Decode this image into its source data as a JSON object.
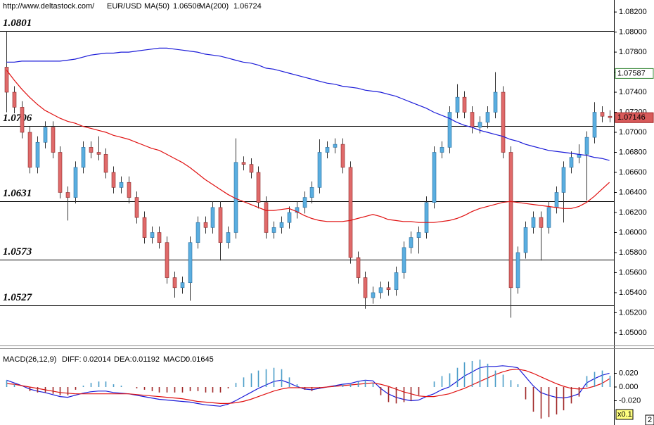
{
  "chart_data": [
    {
      "type": "candlestick",
      "source": "http://www.deltastock.com/",
      "symbol": "EUR/USD",
      "categories": [
        null,
        null,
        null,
        null,
        null,
        null,
        null,
        null,
        null,
        null,
        null,
        null,
        null,
        null,
        null,
        null,
        null,
        null,
        null,
        null,
        null,
        null,
        null,
        null,
        null,
        null,
        null,
        null,
        null,
        null,
        null,
        null,
        null,
        null,
        null,
        null,
        null,
        null,
        null,
        null,
        null,
        null,
        null,
        null,
        null,
        null,
        null,
        null,
        null,
        null,
        null,
        null,
        null,
        null,
        null,
        null,
        null,
        null,
        null,
        null,
        null,
        null,
        null,
        null,
        null,
        null,
        null,
        null,
        null,
        null,
        null,
        null,
        null,
        null,
        null,
        null,
        null,
        null,
        null,
        null
      ],
      "open": [
        1.0765,
        1.074,
        1.0725,
        1.07,
        1.0665,
        1.069,
        1.0705,
        1.068,
        1.064,
        1.0635,
        1.0665,
        1.0685,
        1.068,
        1.0678,
        1.066,
        1.0645,
        1.065,
        1.0635,
        1.0615,
        1.0595,
        1.06,
        1.059,
        1.0555,
        1.0545,
        1.055,
        1.059,
        1.061,
        1.0605,
        1.0625,
        1.059,
        1.06,
        1.067,
        1.0668,
        1.066,
        1.063,
        1.06,
        1.0605,
        1.061,
        1.062,
        1.0625,
        1.0635,
        1.0645,
        1.068,
        1.0685,
        1.0688,
        1.0665,
        1.0575,
        1.0555,
        1.0535,
        1.054,
        1.0545,
        1.0543,
        1.056,
        1.0585,
        1.0595,
        1.06,
        1.063,
        1.068,
        1.0685,
        1.072,
        1.0735,
        1.072,
        1.0705,
        1.071,
        1.072,
        1.074,
        1.068,
        1.0545,
        1.058,
        1.0605,
        1.0615,
        1.0605,
        1.0625,
        1.064,
        1.0665,
        1.0675,
        1.0678,
        1.0695,
        1.072,
        1.0716
      ],
      "high": [
        1.0801,
        1.0746,
        1.0731,
        1.0706,
        1.0696,
        1.0711,
        1.0711,
        1.0686,
        1.0646,
        1.0671,
        1.0691,
        1.0691,
        1.0696,
        1.0684,
        1.0666,
        1.0656,
        1.0656,
        1.0641,
        1.0621,
        1.0606,
        1.0606,
        1.0596,
        1.0561,
        1.0556,
        1.0596,
        1.0616,
        1.0616,
        1.0631,
        1.0631,
        1.0606,
        1.0694,
        1.0676,
        1.0674,
        1.0666,
        1.0636,
        1.0611,
        1.0616,
        1.0626,
        1.0631,
        1.0641,
        1.0651,
        1.0693,
        1.0691,
        1.0694,
        1.0694,
        1.0671,
        1.0581,
        1.0561,
        1.0546,
        1.0551,
        1.0551,
        1.0566,
        1.0591,
        1.0601,
        1.0606,
        1.0636,
        1.0686,
        1.0691,
        1.0726,
        1.0748,
        1.0741,
        1.0726,
        1.0716,
        1.0726,
        1.076,
        1.0746,
        1.0686,
        1.0586,
        1.0611,
        1.0621,
        1.0621,
        1.0631,
        1.0646,
        1.0671,
        1.0681,
        1.0688,
        1.0701,
        1.073,
        1.0726,
        1.0722
      ],
      "low": [
        1.072,
        1.0719,
        1.0694,
        1.0659,
        1.0659,
        1.0684,
        1.0674,
        1.0634,
        1.0612,
        1.0629,
        1.0659,
        1.0674,
        1.0672,
        1.0654,
        1.0639,
        1.0639,
        1.0629,
        1.0609,
        1.0589,
        1.0589,
        1.0584,
        1.0549,
        1.0535,
        1.0539,
        1.0532,
        1.0584,
        1.0599,
        1.0599,
        1.0572,
        1.0584,
        1.0594,
        1.0662,
        1.0654,
        1.0624,
        1.0594,
        1.0594,
        1.0599,
        1.0604,
        1.0614,
        1.0619,
        1.0629,
        1.0639,
        1.0674,
        1.0679,
        1.0659,
        1.0569,
        1.0549,
        1.0524,
        1.0529,
        1.0534,
        1.0537,
        1.0537,
        1.0554,
        1.0579,
        1.0579,
        1.0594,
        1.0624,
        1.0674,
        1.0679,
        1.0714,
        1.0714,
        1.0699,
        1.0699,
        1.0704,
        1.0714,
        1.0674,
        1.0515,
        1.0539,
        1.0574,
        1.0599,
        1.0572,
        1.0599,
        1.0619,
        1.061,
        1.0659,
        1.0669,
        1.0632,
        1.0689,
        1.071,
        1.071
      ],
      "close": [
        1.074,
        1.0725,
        1.07,
        1.0665,
        1.069,
        1.0705,
        1.068,
        1.064,
        1.0635,
        1.0665,
        1.0685,
        1.068,
        1.0678,
        1.066,
        1.0645,
        1.065,
        1.0635,
        1.0615,
        1.0595,
        1.06,
        1.059,
        1.0555,
        1.0545,
        1.055,
        1.059,
        1.061,
        1.0605,
        1.0625,
        1.059,
        1.06,
        1.067,
        1.0668,
        1.066,
        1.063,
        1.06,
        1.0605,
        1.061,
        1.062,
        1.0625,
        1.0635,
        1.0645,
        1.068,
        1.0685,
        1.0688,
        1.0665,
        1.0575,
        1.0555,
        1.0535,
        1.054,
        1.0545,
        1.0543,
        1.056,
        1.0585,
        1.0595,
        1.06,
        1.063,
        1.068,
        1.0685,
        1.072,
        1.0735,
        1.072,
        1.0705,
        1.071,
        1.072,
        1.074,
        1.068,
        1.0545,
        1.058,
        1.0605,
        1.0615,
        1.0605,
        1.0625,
        1.064,
        1.0665,
        1.0675,
        1.0678,
        1.0695,
        1.072,
        1.0716,
        1.07146
      ],
      "up_color": "#5aaee0",
      "down_color": "#e06a6a",
      "series": [
        {
          "name": "MA(50)",
          "current": 1.06506,
          "color": "#e01010",
          "values": [
            1.0762,
            1.0752,
            1.0743,
            1.0735,
            1.0728,
            1.0722,
            1.0718,
            1.0714,
            1.0711,
            1.0709,
            1.0706,
            1.0704,
            1.0702,
            1.07,
            1.0697,
            1.0695,
            1.0693,
            1.069,
            1.0687,
            1.0684,
            1.0682,
            1.0678,
            1.0674,
            1.067,
            1.0665,
            1.0659,
            1.0653,
            1.0648,
            1.0643,
            1.0638,
            1.0634,
            1.0631,
            1.0628,
            1.0625,
            1.0622,
            1.0622,
            1.0623,
            1.0624,
            1.0621,
            1.0617,
            1.0614,
            1.0612,
            1.0611,
            1.0611,
            1.0611,
            1.0612,
            1.0614,
            1.0616,
            1.0618,
            1.0616,
            1.0613,
            1.0612,
            1.0611,
            1.0611,
            1.061,
            1.061,
            1.061,
            1.0611,
            1.0612,
            1.0614,
            1.0617,
            1.0621,
            1.0624,
            1.0626,
            1.0628,
            1.063,
            1.0631,
            1.063,
            1.0629,
            1.0628,
            1.0627,
            1.0626,
            1.0625,
            1.0624,
            1.0624,
            1.0626,
            1.063,
            1.0636,
            1.0643,
            1.065
          ]
        },
        {
          "name": "MA(200)",
          "current": 1.06724,
          "color": "#1a1ad8",
          "values": [
            1.077,
            1.077,
            1.0771,
            1.0771,
            1.0771,
            1.0771,
            1.0771,
            1.0771,
            1.0772,
            1.0773,
            1.0775,
            1.0777,
            1.0778,
            1.0779,
            1.0779,
            1.078,
            1.078,
            1.0781,
            1.0782,
            1.0783,
            1.0784,
            1.0784,
            1.0783,
            1.0782,
            1.0781,
            1.078,
            1.0778,
            1.0777,
            1.0776,
            1.0774,
            1.0772,
            1.077,
            1.0769,
            1.0767,
            1.0764,
            1.0763,
            1.0761,
            1.0759,
            1.0757,
            1.0755,
            1.0753,
            1.0751,
            1.0749,
            1.0748,
            1.0746,
            1.0745,
            1.0744,
            1.0742,
            1.0741,
            1.074,
            1.0738,
            1.0736,
            1.0733,
            1.073,
            1.0727,
            1.0724,
            1.072,
            1.0717,
            1.0714,
            1.071,
            1.0707,
            1.0705,
            1.0702,
            1.07,
            1.0698,
            1.0696,
            1.0693,
            1.0691,
            1.0688,
            1.0686,
            1.0684,
            1.0682,
            1.0681,
            1.068,
            1.0679,
            1.0678,
            1.0677,
            1.0675,
            1.0674,
            1.0672
          ]
        }
      ],
      "levels": [
        1.0801,
        1.0706,
        1.0631,
        1.0573,
        1.0527
      ],
      "level_color": "#e00000",
      "marker_price": 1.07587,
      "last_price": 1.07146,
      "ylim": [
        1.0488,
        1.0832
      ],
      "yticks": [
        {
          "value": 1.05,
          "label": "1.05000"
        },
        {
          "value": 1.052,
          "label": "1.05200"
        },
        {
          "value": 1.054,
          "label": "1.05400"
        },
        {
          "value": 1.056,
          "label": "1.05600"
        },
        {
          "value": 1.058,
          "label": "1.05800"
        },
        {
          "value": 1.06,
          "label": "1.06000"
        },
        {
          "value": 1.062,
          "label": "1.06200"
        },
        {
          "value": 1.064,
          "label": "1.06400"
        },
        {
          "value": 1.066,
          "label": "1.06600"
        },
        {
          "value": 1.068,
          "label": "1.06800"
        },
        {
          "value": 1.07,
          "label": "1.07000"
        },
        {
          "value": 1.072,
          "label": "1.07200"
        },
        {
          "value": 1.074,
          "label": "1.07400"
        },
        {
          "value": 1.076,
          "label": "1.07600"
        },
        {
          "value": 1.078,
          "label": "1.07800"
        },
        {
          "value": 1.08,
          "label": "1.08000"
        },
        {
          "value": 1.082,
          "label": "1.08200"
        }
      ]
    },
    {
      "type": "macd",
      "title": "MACD(26,12,9)",
      "series": [
        {
          "name": "DIFF:",
          "current": 0.02014,
          "color": "#1a1ad8",
          "style": "line",
          "values": [
            0.01,
            0.006,
            0.002,
            -0.003,
            -0.006,
            -0.008,
            -0.011,
            -0.014,
            -0.015,
            -0.012,
            -0.009,
            -0.007,
            -0.006,
            -0.006,
            -0.008,
            -0.009,
            -0.01,
            -0.012,
            -0.014,
            -0.016,
            -0.018,
            -0.019,
            -0.02,
            -0.021,
            -0.022,
            -0.024,
            -0.026,
            -0.027,
            -0.028,
            -0.025,
            -0.02,
            -0.014,
            -0.008,
            -0.002,
            0.003,
            0.008,
            0.01,
            0.006,
            0.001,
            -0.003,
            -0.004,
            -0.002,
            0.0,
            0.002,
            0.004,
            0.005,
            0.008,
            0.01,
            0.009,
            -0.002,
            -0.01,
            -0.015,
            -0.018,
            -0.02,
            -0.019,
            -0.014,
            -0.01,
            -0.004,
            0.0,
            0.008,
            0.016,
            0.022,
            0.028,
            0.03,
            0.03,
            0.031,
            0.03,
            0.028,
            0.015,
            0.002,
            -0.008,
            -0.012,
            -0.015,
            -0.016,
            -0.014,
            -0.01,
            0.006,
            0.012,
            0.017,
            0.02014
          ]
        },
        {
          "name": "DEA:",
          "current": 0.01192,
          "color": "#e01010",
          "style": "line",
          "values": [
            0.005,
            0.004,
            0.002,
            0.0,
            -0.002,
            -0.004,
            -0.006,
            -0.008,
            -0.009,
            -0.01,
            -0.01,
            -0.01,
            -0.01,
            -0.01,
            -0.01,
            -0.01,
            -0.01,
            -0.011,
            -0.012,
            -0.013,
            -0.014,
            -0.015,
            -0.016,
            -0.017,
            -0.019,
            -0.021,
            -0.022,
            -0.023,
            -0.024,
            -0.024,
            -0.023,
            -0.021,
            -0.018,
            -0.014,
            -0.01,
            -0.006,
            -0.003,
            -0.001,
            -0.001,
            -0.001,
            -0.001,
            -0.001,
            0.0,
            0.001,
            0.002,
            0.003,
            0.004,
            0.005,
            0.006,
            0.004,
            0.001,
            -0.003,
            -0.007,
            -0.01,
            -0.013,
            -0.014,
            -0.014,
            -0.012,
            -0.01,
            -0.006,
            -0.002,
            0.003,
            0.008,
            0.013,
            0.018,
            0.022,
            0.025,
            0.026,
            0.024,
            0.02,
            0.015,
            0.01,
            0.005,
            0.001,
            -0.002,
            -0.003,
            -0.002,
            0.001,
            0.005,
            0.01192
          ]
        },
        {
          "name": "MACD:",
          "current": 0.01645,
          "color": "#4a9cc8",
          "negative_color": "#a02828",
          "style": "histogram",
          "values": [
            0.01,
            0.004,
            0.0,
            -0.006,
            -0.008,
            -0.008,
            -0.01,
            -0.012,
            -0.012,
            -0.004,
            0.002,
            0.006,
            0.008,
            0.008,
            0.004,
            0.002,
            0.0,
            -0.002,
            -0.004,
            -0.006,
            -0.008,
            -0.008,
            -0.008,
            -0.008,
            -0.006,
            -0.006,
            -0.008,
            -0.008,
            -0.008,
            -0.002,
            0.006,
            0.014,
            0.02,
            0.024,
            0.026,
            0.028,
            0.026,
            0.014,
            0.004,
            -0.004,
            -0.006,
            -0.002,
            0.0,
            0.002,
            0.004,
            0.004,
            0.008,
            0.01,
            0.006,
            -0.012,
            -0.022,
            -0.024,
            -0.022,
            -0.02,
            -0.012,
            0.0,
            0.008,
            0.016,
            0.02,
            0.028,
            0.036,
            0.038,
            0.04,
            0.034,
            0.024,
            0.018,
            0.01,
            0.004,
            -0.018,
            -0.036,
            -0.046,
            -0.044,
            -0.04,
            -0.034,
            -0.024,
            -0.014,
            0.016,
            0.022,
            0.024,
            0.01645
          ]
        }
      ],
      "ylim": [
        -0.0513,
        0.0513
      ],
      "yticks": [
        {
          "value": 0.02,
          "label": "0.020"
        },
        {
          "value": 0,
          "label": "0.000"
        },
        {
          "value": -0.02,
          "label": "-0.020"
        }
      ],
      "scale_label": "x0.1",
      "corner_label": "2"
    }
  ]
}
